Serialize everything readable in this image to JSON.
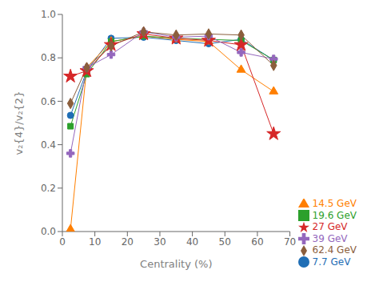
{
  "chart_data": {
    "type": "line",
    "xlabel": "Centrality (%)",
    "ylabel": "v₂{4}/v₂{2}",
    "x": [
      2.5,
      7.5,
      15,
      25,
      35,
      45,
      55,
      65
    ],
    "xlim": [
      0,
      70
    ],
    "ylim": [
      0.0,
      1.0
    ],
    "xticks": [
      0,
      10,
      20,
      30,
      40,
      50,
      60,
      70
    ],
    "yticks": [
      {
        "value": 0.0,
        "label": "0.0"
      },
      0.2,
      0.4,
      0.6,
      0.8,
      {
        "value": 1.0,
        "label": "1.0"
      }
    ],
    "grid": false,
    "legend": "lower right",
    "series": [
      {
        "name": "7.7 GeV",
        "color": "#1f6eb5",
        "marker": "circle",
        "values": [
          0.535,
          0.74,
          0.89,
          0.895,
          0.88,
          0.865,
          0.885,
          0.79
        ]
      },
      {
        "name": "14.5 GeV",
        "color": "#ff7f00",
        "marker": "triangle",
        "values": [
          0.01,
          0.755,
          0.875,
          0.9,
          0.885,
          0.875,
          0.745,
          0.645
        ]
      },
      {
        "name": "19.6 GeV",
        "color": "#2ca02c",
        "marker": "square",
        "values": [
          0.485,
          0.725,
          0.875,
          0.9,
          0.89,
          0.885,
          0.88,
          0.79
        ]
      },
      {
        "name": "27 GeV",
        "color": "#d62728",
        "marker": "star",
        "values": [
          0.715,
          0.74,
          0.86,
          0.91,
          0.89,
          0.88,
          0.86,
          0.45
        ]
      },
      {
        "name": "39 GeV",
        "color": "#9467bd",
        "marker": "plus",
        "values": [
          0.36,
          0.755,
          0.815,
          0.92,
          0.895,
          0.9,
          0.825,
          0.795
        ]
      },
      {
        "name": "62.4 GeV",
        "color": "#8b5e3c",
        "marker": "diamond",
        "values": [
          0.59,
          0.755,
          0.855,
          0.92,
          0.905,
          0.91,
          0.905,
          0.765
        ]
      }
    ]
  }
}
